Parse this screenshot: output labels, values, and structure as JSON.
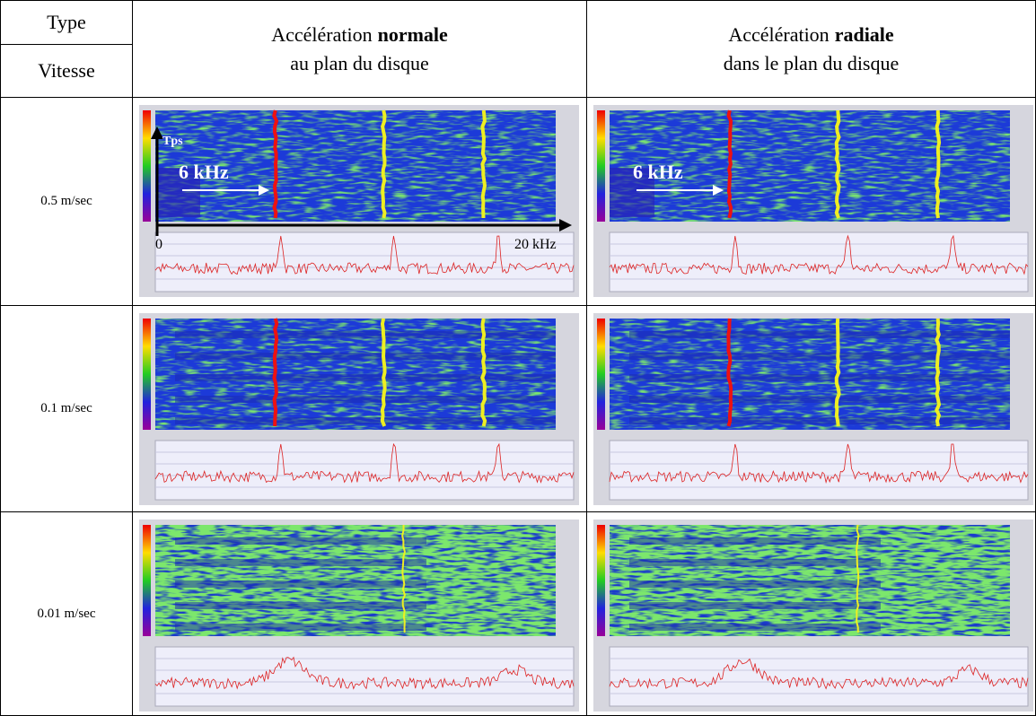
{
  "header": {
    "type_label": "Type",
    "speed_label": "Vitesse",
    "columns": [
      {
        "prefix": "Accélération",
        "emphasis": "normale",
        "line2": "au plan du disque"
      },
      {
        "prefix": "Accélération",
        "emphasis": "radiale",
        "line2": "dans le plan du disque"
      }
    ]
  },
  "rows": [
    {
      "speed": "0.5 m/sec"
    },
    {
      "speed": "0.1 m/sec"
    },
    {
      "speed": "0.01 m/sec"
    }
  ],
  "annotations": {
    "time_axis": "Tps",
    "frequency_marker": "6 kHz",
    "freq_start": "0",
    "freq_end": "20 kHz"
  }
}
